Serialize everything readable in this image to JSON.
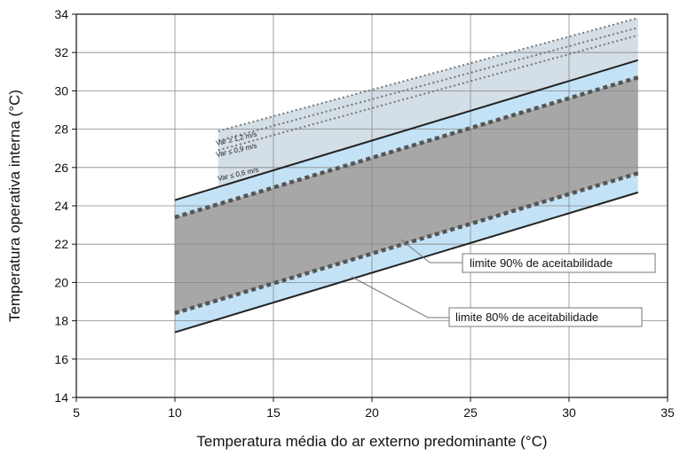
{
  "chart_data": {
    "type": "line",
    "xlabel": "Temperatura média do ar externo predominante (°C)",
    "ylabel": "Temperatura operativa interna (°C)",
    "xlim": [
      5,
      35
    ],
    "ylim": [
      14,
      34
    ],
    "xticks": [
      "5",
      "10",
      "15",
      "20",
      "25",
      "30",
      "35"
    ],
    "yticks": [
      "14",
      "16",
      "18",
      "20",
      "22",
      "24",
      "26",
      "28",
      "30",
      "32",
      "34"
    ],
    "grid": true,
    "series": [
      {
        "name": "limite 80% de aceitabilidade",
        "style": "solid",
        "color": "#222222",
        "x": [
          10,
          33.5
        ],
        "upper": [
          24.3,
          31.6
        ],
        "lower": [
          17.4,
          24.7
        ]
      },
      {
        "name": "limite 90% de aceitabilidade",
        "style": "dashed",
        "color": "#555555",
        "x": [
          10,
          33.5
        ],
        "upper": [
          23.4,
          30.7
        ],
        "lower": [
          18.4,
          25.7
        ]
      },
      {
        "name": "Var ≤ 0,6 m/s",
        "style": "dotted",
        "color": "#777777",
        "x": [
          12.2,
          33.5
        ],
        "y": [
          26.9,
          32.9
        ]
      },
      {
        "name": "Var ≤ 0,9 m/s",
        "style": "dotted",
        "color": "#777777",
        "x": [
          12.2,
          33.5
        ],
        "y": [
          27.4,
          33.3
        ]
      },
      {
        "name": "Var ≥ 1,2 m/s",
        "style": "dotted",
        "color": "#777777",
        "x": [
          12.2,
          33.5
        ],
        "y": [
          27.9,
          33.8
        ]
      }
    ],
    "annotations": {
      "a90": "limite 90% de aceitabilidade",
      "a80": "limite 80% de aceitabilidade",
      "v06": "Var ≤ 0,6 m/s",
      "v09": "Var ≤ 0,9 m/s",
      "v12": "Var ≥ 1,2 m/s"
    },
    "colors": {
      "band80": "#c3e2f5",
      "band90": "#a7a7a7",
      "airspeed_region": "#d3dee6",
      "grid": "#888888"
    }
  }
}
